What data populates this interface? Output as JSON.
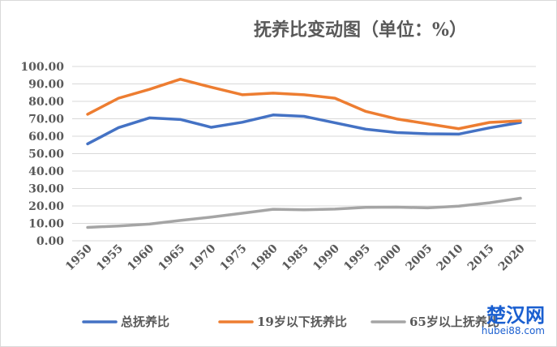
{
  "chart_data": {
    "type": "line",
    "title": "抚养比变动图（单位：%）",
    "categories": [
      "1950",
      "1955",
      "1960",
      "1965",
      "1970",
      "1975",
      "1980",
      "1985",
      "1990",
      "1995",
      "2000",
      "2005",
      "2010",
      "2015",
      "2020"
    ],
    "ylim": [
      0,
      100
    ],
    "yticks": [
      "0.00",
      "10.00",
      "20.00",
      "30.00",
      "40.00",
      "50.00",
      "60.00",
      "70.00",
      "80.00",
      "90.00",
      "100.00"
    ],
    "grid": true,
    "legend_position": "bottom",
    "series": [
      {
        "name": "总抚养比",
        "color": "#4472c4",
        "values": [
          55.6,
          64.9,
          70.5,
          69.6,
          65.1,
          68.0,
          72.2,
          71.4,
          67.7,
          64.0,
          62.1,
          61.4,
          61.2,
          64.8,
          67.9
        ]
      },
      {
        "name": "19岁以下抚养比",
        "color": "#ed7d31",
        "values": [
          72.6,
          81.8,
          86.9,
          92.7,
          88.1,
          83.8,
          84.7,
          83.8,
          81.8,
          74.2,
          69.9,
          67.1,
          64.3,
          67.9,
          68.8
        ]
      },
      {
        "name": "65岁以上抚养比",
        "color": "#a5a5a5",
        "values": [
          7.7,
          8.5,
          9.6,
          11.7,
          13.6,
          15.8,
          18.1,
          17.8,
          18.2,
          19.2,
          19.3,
          18.9,
          19.9,
          21.8,
          24.4
        ]
      }
    ]
  },
  "watermark": {
    "brand": "楚汉网",
    "domain": "hubei88.com"
  }
}
